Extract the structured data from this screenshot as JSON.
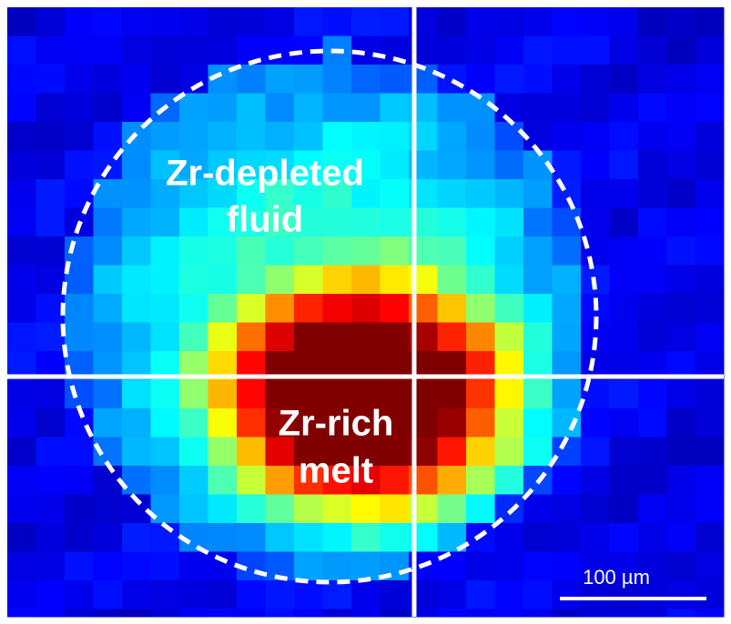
{
  "labels": {
    "upper": [
      "Zr-depleted",
      "fluid"
    ],
    "lower": [
      "Zr-rich",
      "melt"
    ]
  },
  "scale_bar": "100 µm"
}
